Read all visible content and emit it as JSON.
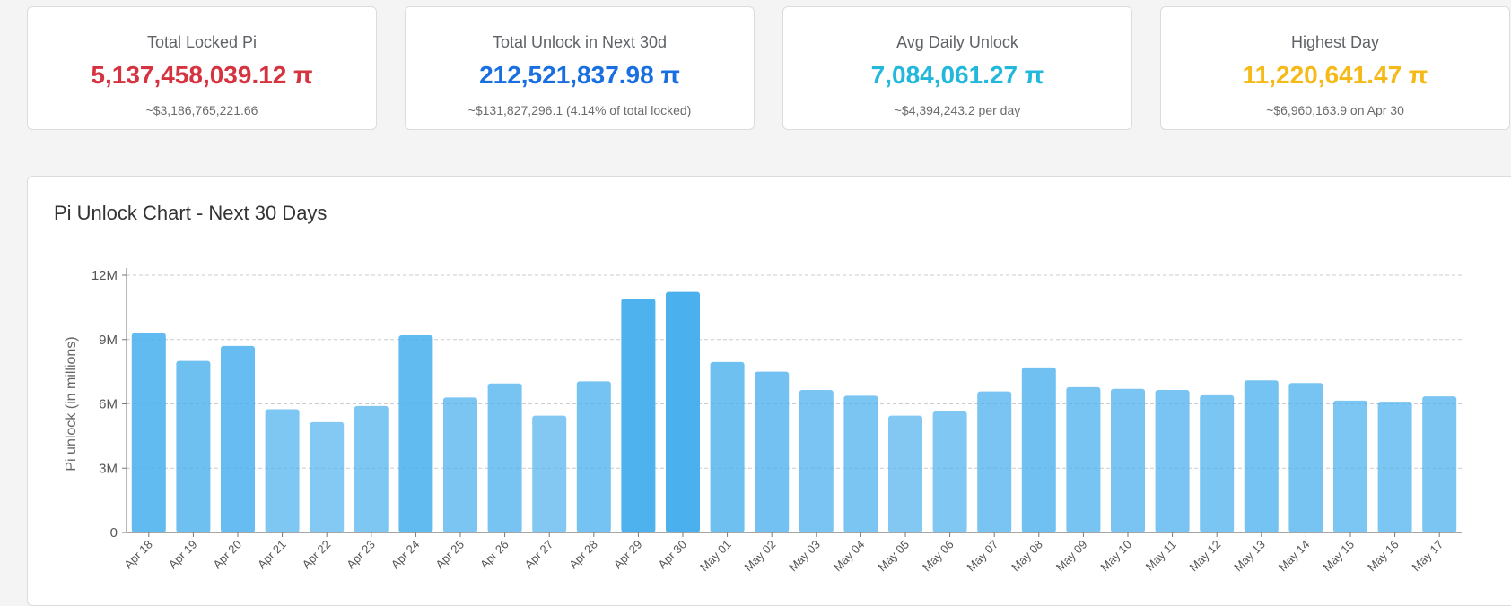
{
  "colors": {
    "locked": "#d63341",
    "unlock30": "#1a6fe0",
    "avg": "#22b8dc",
    "highest": "#f5b918",
    "bar": "#4ab0ee"
  },
  "stats": [
    {
      "title": "Total Locked Pi",
      "value": "5,137,458,039.12 π",
      "sub": "~$3,186,765,221.66"
    },
    {
      "title": "Total Unlock in Next 30d",
      "value": "212,521,837.98 π",
      "sub": "~$131,827,296.1 (4.14% of total locked)"
    },
    {
      "title": "Avg Daily Unlock",
      "value": "7,084,061.27 π",
      "sub": "~$4,394,243.2 per day"
    },
    {
      "title": "Highest Day",
      "value": "11,220,641.47 π",
      "sub": "~$6,960,163.9 on Apr 30"
    }
  ],
  "chart_data": {
    "type": "bar",
    "title": "Pi Unlock Chart - Next 30 Days",
    "xlabel": "",
    "ylabel": "Pi unlock (in millions)",
    "ylim": [
      0,
      12000000
    ],
    "yticks": [
      0,
      3000000,
      6000000,
      9000000,
      12000000
    ],
    "ytick_labels": [
      "0",
      "3M",
      "6M",
      "9M",
      "12M"
    ],
    "grid": true,
    "categories": [
      "Apr 18",
      "Apr 19",
      "Apr 20",
      "Apr 21",
      "Apr 22",
      "Apr 23",
      "Apr 24",
      "Apr 25",
      "Apr 26",
      "Apr 27",
      "Apr 28",
      "Apr 29",
      "Apr 30",
      "May 01",
      "May 02",
      "May 03",
      "May 04",
      "May 05",
      "May 06",
      "May 07",
      "May 08",
      "May 09",
      "May 10",
      "May 11",
      "May 12",
      "May 13",
      "May 14",
      "May 15",
      "May 16",
      "May 17"
    ],
    "values": [
      9300000,
      8000000,
      8700000,
      5750000,
      5150000,
      5900000,
      9200000,
      6300000,
      6950000,
      5450000,
      7050000,
      10900000,
      11220641,
      7950000,
      7500000,
      6650000,
      6380000,
      5450000,
      5650000,
      6580000,
      7700000,
      6780000,
      6700000,
      6650000,
      6400000,
      7100000,
      6970000,
      6150000,
      6100000,
      6350000
    ]
  }
}
